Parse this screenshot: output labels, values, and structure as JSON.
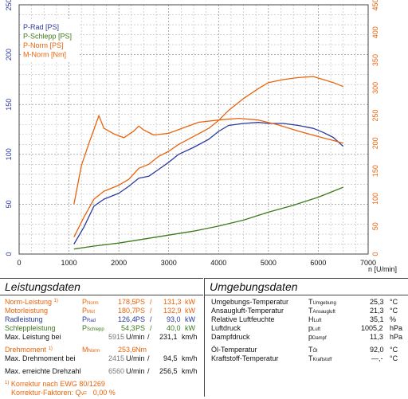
{
  "chart_data": {
    "type": "line",
    "xlabel": "n [U/min]",
    "xlim": [
      0,
      7000
    ],
    "xticks": [
      0,
      1000,
      2000,
      3000,
      4000,
      5000,
      6000,
      7000
    ],
    "ylim_left": [
      0,
      250
    ],
    "yticks_left": [
      0,
      50,
      100,
      150,
      200,
      250
    ],
    "ylim_right": [
      0,
      450
    ],
    "yticks_right": [
      0,
      50,
      100,
      150,
      200,
      250,
      300,
      350,
      400,
      450
    ],
    "grid": true,
    "legend_position": "top-left",
    "series": [
      {
        "name": "P-Rad [PS]",
        "color": "#2b3a9c",
        "axis": "left",
        "x": [
          1100,
          1300,
          1500,
          1700,
          2000,
          2200,
          2400,
          2600,
          2800,
          3000,
          3200,
          3500,
          3800,
          4000,
          4200,
          4500,
          4800,
          5000,
          5300,
          5600,
          5900,
          6100,
          6300,
          6500
        ],
        "y": [
          10,
          27,
          48,
          55,
          61,
          68,
          76,
          78,
          85,
          92,
          100,
          107,
          115,
          123,
          129,
          131,
          132,
          131,
          131,
          129,
          126,
          122,
          117,
          108
        ]
      },
      {
        "name": "P-Schlepp [PS]",
        "color": "#3d7a1c",
        "axis": "left",
        "x": [
          1100,
          1500,
          2000,
          2500,
          3000,
          3500,
          4000,
          4500,
          5000,
          5500,
          6000,
          6500
        ],
        "y": [
          5,
          8,
          11,
          15,
          19,
          23,
          28,
          34,
          42,
          49,
          57,
          67
        ]
      },
      {
        "name": "P-Norm [PS]",
        "color": "#e8640c",
        "axis": "left",
        "x": [
          1100,
          1300,
          1500,
          1700,
          2000,
          2200,
          2400,
          2600,
          2800,
          3000,
          3200,
          3500,
          3800,
          4000,
          4200,
          4500,
          4800,
          5000,
          5300,
          5600,
          5900,
          6100,
          6300,
          6500
        ],
        "y": [
          17,
          37,
          55,
          63,
          69,
          75,
          86,
          90,
          98,
          103,
          110,
          118,
          126,
          134,
          144,
          156,
          166,
          172,
          175,
          177,
          178,
          175,
          172,
          168
        ]
      },
      {
        "name": "M-Norm [Nm]",
        "color": "#e8640c",
        "axis": "right",
        "x": [
          1100,
          1250,
          1400,
          1500,
          1600,
          1700,
          1900,
          2100,
          2300,
          2400,
          2500,
          2700,
          3000,
          3300,
          3600,
          4000,
          4400,
          4800,
          5200,
          5600,
          6000,
          6300,
          6500
        ],
        "y": [
          90,
          160,
          200,
          225,
          250,
          227,
          217,
          210,
          222,
          231,
          224,
          215,
          218,
          228,
          238,
          242,
          245,
          242,
          233,
          222,
          212,
          205,
          200
        ]
      }
    ]
  }
}
